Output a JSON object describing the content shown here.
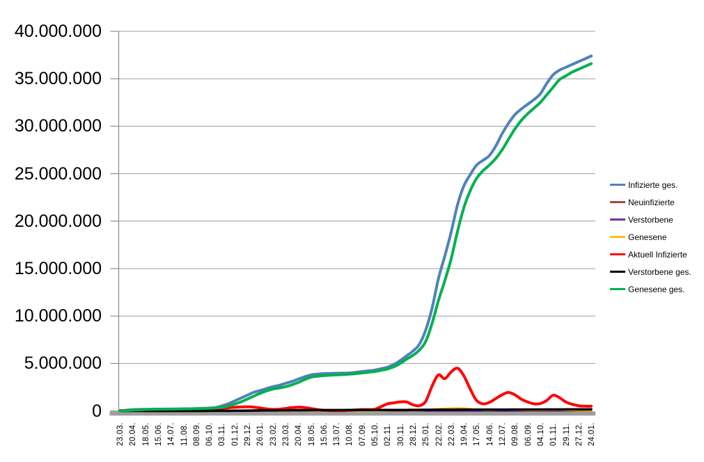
{
  "chart_data": {
    "type": "line",
    "title": "",
    "xlabel": "",
    "ylabel": "",
    "grid": "horizontal",
    "legend_position": "right",
    "ylim": [
      0,
      40000000
    ],
    "y_tick_labels": [
      "0",
      "5.000.000",
      "10.000.000",
      "15.000.000",
      "20.000.000",
      "25.000.000",
      "30.000.000",
      "35.000.000",
      "40.000.000"
    ],
    "x_labels": [
      "23.03.",
      "20.04.",
      "18.05.",
      "15.06.",
      "14.07.",
      "11.08.",
      "08.09.",
      "06.10.",
      "03.11.",
      "01.12.",
      "29.12.",
      "26.01.",
      "23.02.",
      "23.03.",
      "20.04.",
      "18.05.",
      "15.06.",
      "13.07.",
      "10.08.",
      "07.09.",
      "05.10.",
      "02.11.",
      "30.11.",
      "28.12.",
      "25.01.",
      "22.02.",
      "22.03.",
      "19.04.",
      "17.05.",
      "14.06.",
      "12.07.",
      "09.08.",
      "06.09.",
      "04.10.",
      "01.11.",
      "29.11.",
      "27.12.",
      "24.01."
    ],
    "points_per_label": 2,
    "values_unit": "millions",
    "series": [
      {
        "name": "Infizierte ges.",
        "color": "#4F81BD",
        "values_mio": [
          0.03,
          0.07,
          0.14,
          0.16,
          0.175,
          0.18,
          0.19,
          0.195,
          0.2,
          0.21,
          0.22,
          0.23,
          0.25,
          0.27,
          0.3,
          0.36,
          0.53,
          0.75,
          1.05,
          1.35,
          1.65,
          1.95,
          2.15,
          2.35,
          2.55,
          2.7,
          2.9,
          3.1,
          3.35,
          3.6,
          3.8,
          3.88,
          3.93,
          3.95,
          3.97,
          3.98,
          4.0,
          4.07,
          4.15,
          4.22,
          4.3,
          4.45,
          4.6,
          4.9,
          5.3,
          5.8,
          6.3,
          7.0,
          8.5,
          10.8,
          13.9,
          16.3,
          18.8,
          21.7,
          23.7,
          24.9,
          25.9,
          26.4,
          26.9,
          27.9,
          29.2,
          30.3,
          31.2,
          31.8,
          32.3,
          32.8,
          33.4,
          34.5,
          35.4,
          35.9,
          36.2,
          36.5,
          36.8,
          37.1,
          37.4
        ]
      },
      {
        "name": "Neuinfizierte",
        "color": "#A5443E",
        "values_mio": [
          0.002,
          0.004,
          0.003,
          0.002,
          0.001,
          0.001,
          0.001,
          0.001,
          0.001,
          0.001,
          0.001,
          0.002,
          0.002,
          0.003,
          0.005,
          0.01,
          0.018,
          0.022,
          0.024,
          0.025,
          0.022,
          0.015,
          0.01,
          0.008,
          0.008,
          0.01,
          0.015,
          0.02,
          0.022,
          0.018,
          0.012,
          0.006,
          0.003,
          0.002,
          0.001,
          0.002,
          0.004,
          0.008,
          0.01,
          0.008,
          0.009,
          0.02,
          0.04,
          0.05,
          0.045,
          0.04,
          0.03,
          0.04,
          0.1,
          0.17,
          0.21,
          0.19,
          0.24,
          0.22,
          0.15,
          0.1,
          0.05,
          0.03,
          0.04,
          0.06,
          0.08,
          0.09,
          0.07,
          0.05,
          0.04,
          0.03,
          0.04,
          0.06,
          0.08,
          0.06,
          0.04,
          0.03,
          0.02,
          0.015,
          0.012
        ]
      },
      {
        "name": "Verstorbene",
        "color": "#7030A0",
        "values_mio": [
          0.001,
          0.001,
          0.001,
          0.001,
          0.001,
          0.001,
          0.001,
          0.001,
          0.001,
          0.001,
          0.001,
          0.001,
          0.001,
          0.001,
          0.001,
          0.001,
          0.001,
          0.001,
          0.001,
          0.001,
          0.001,
          0.001,
          0.001,
          0.001,
          0.001,
          0.001,
          0.001,
          0.001,
          0.001,
          0.001,
          0.001,
          0.001,
          0.001,
          0.001,
          0.001,
          0.001,
          0.001,
          0.001,
          0.001,
          0.001,
          0.001,
          0.001,
          0.001,
          0.001,
          0.001,
          0.001,
          0.001,
          0.001,
          0.001,
          0.001,
          0.001,
          0.001,
          0.001,
          0.001,
          0.001,
          0.001,
          0.001,
          0.001,
          0.001,
          0.001,
          0.001,
          0.001,
          0.001,
          0.001,
          0.001,
          0.001,
          0.001,
          0.001,
          0.001,
          0.001,
          0.001,
          0.001,
          0.001,
          0.001,
          0.001
        ]
      },
      {
        "name": "Genesene",
        "color": "#FFC000",
        "values_mio": [
          0.001,
          0.002,
          0.004,
          0.003,
          0.002,
          0.001,
          0.001,
          0.001,
          0.001,
          0.001,
          0.001,
          0.001,
          0.002,
          0.002,
          0.003,
          0.006,
          0.012,
          0.018,
          0.022,
          0.024,
          0.023,
          0.018,
          0.012,
          0.009,
          0.008,
          0.009,
          0.013,
          0.018,
          0.021,
          0.02,
          0.014,
          0.008,
          0.004,
          0.002,
          0.002,
          0.002,
          0.003,
          0.006,
          0.009,
          0.009,
          0.008,
          0.015,
          0.03,
          0.045,
          0.048,
          0.042,
          0.035,
          0.04,
          0.08,
          0.15,
          0.22,
          0.25,
          0.28,
          0.3,
          0.28,
          0.22,
          0.14,
          0.08,
          0.07,
          0.09,
          0.12,
          0.13,
          0.12,
          0.09,
          0.07,
          0.06,
          0.06,
          0.08,
          0.1,
          0.09,
          0.07,
          0.05,
          0.04,
          0.03,
          0.025
        ]
      },
      {
        "name": "Aktuell Infizierte",
        "color": "#FF0000",
        "values_mio": [
          0.025,
          0.05,
          0.055,
          0.035,
          0.02,
          0.012,
          0.008,
          0.007,
          0.007,
          0.008,
          0.01,
          0.015,
          0.02,
          0.03,
          0.05,
          0.12,
          0.25,
          0.33,
          0.38,
          0.42,
          0.44,
          0.4,
          0.31,
          0.22,
          0.16,
          0.18,
          0.26,
          0.35,
          0.4,
          0.36,
          0.25,
          0.15,
          0.07,
          0.04,
          0.025,
          0.035,
          0.07,
          0.11,
          0.15,
          0.14,
          0.17,
          0.45,
          0.75,
          0.85,
          0.95,
          0.95,
          0.65,
          0.55,
          1.0,
          2.6,
          3.8,
          3.4,
          4.1,
          4.5,
          3.7,
          2.3,
          1.1,
          0.75,
          0.9,
          1.3,
          1.7,
          1.95,
          1.7,
          1.25,
          0.95,
          0.75,
          0.78,
          1.1,
          1.65,
          1.4,
          0.95,
          0.7,
          0.55,
          0.5,
          0.5
        ]
      },
      {
        "name": "Verstorbene ges.",
        "color": "#000000",
        "values_mio": [
          0.001,
          0.002,
          0.004,
          0.006,
          0.008,
          0.0085,
          0.0087,
          0.0089,
          0.009,
          0.0092,
          0.0093,
          0.0094,
          0.0095,
          0.0097,
          0.01,
          0.011,
          0.012,
          0.015,
          0.02,
          0.027,
          0.034,
          0.043,
          0.052,
          0.06,
          0.066,
          0.07,
          0.074,
          0.077,
          0.08,
          0.083,
          0.086,
          0.088,
          0.089,
          0.09,
          0.091,
          0.0915,
          0.092,
          0.0925,
          0.093,
          0.0935,
          0.094,
          0.095,
          0.097,
          0.099,
          0.101,
          0.104,
          0.108,
          0.112,
          0.116,
          0.119,
          0.122,
          0.125,
          0.127,
          0.129,
          0.131,
          0.133,
          0.135,
          0.137,
          0.139,
          0.14,
          0.141,
          0.142,
          0.144,
          0.145,
          0.147,
          0.149,
          0.15,
          0.152,
          0.154,
          0.156,
          0.158,
          0.16,
          0.161,
          0.163,
          0.165
        ]
      },
      {
        "name": "Genesene ges.",
        "color": "#00B050",
        "values_mio": [
          0.01,
          0.03,
          0.08,
          0.12,
          0.15,
          0.16,
          0.175,
          0.18,
          0.19,
          0.2,
          0.21,
          0.22,
          0.23,
          0.25,
          0.27,
          0.31,
          0.38,
          0.52,
          0.72,
          0.95,
          1.25,
          1.55,
          1.85,
          2.1,
          2.3,
          2.42,
          2.55,
          2.75,
          3.0,
          3.3,
          3.55,
          3.65,
          3.72,
          3.77,
          3.8,
          3.83,
          3.87,
          3.93,
          4.0,
          4.07,
          4.15,
          4.28,
          4.42,
          4.65,
          5.0,
          5.45,
          5.85,
          6.4,
          7.3,
          9.2,
          11.6,
          13.7,
          16.0,
          18.9,
          21.4,
          23.2,
          24.5,
          25.3,
          25.9,
          26.6,
          27.5,
          28.6,
          29.7,
          30.6,
          31.3,
          31.9,
          32.5,
          33.3,
          34.1,
          34.9,
          35.3,
          35.7,
          36.0,
          36.3,
          36.6
        ]
      }
    ]
  }
}
